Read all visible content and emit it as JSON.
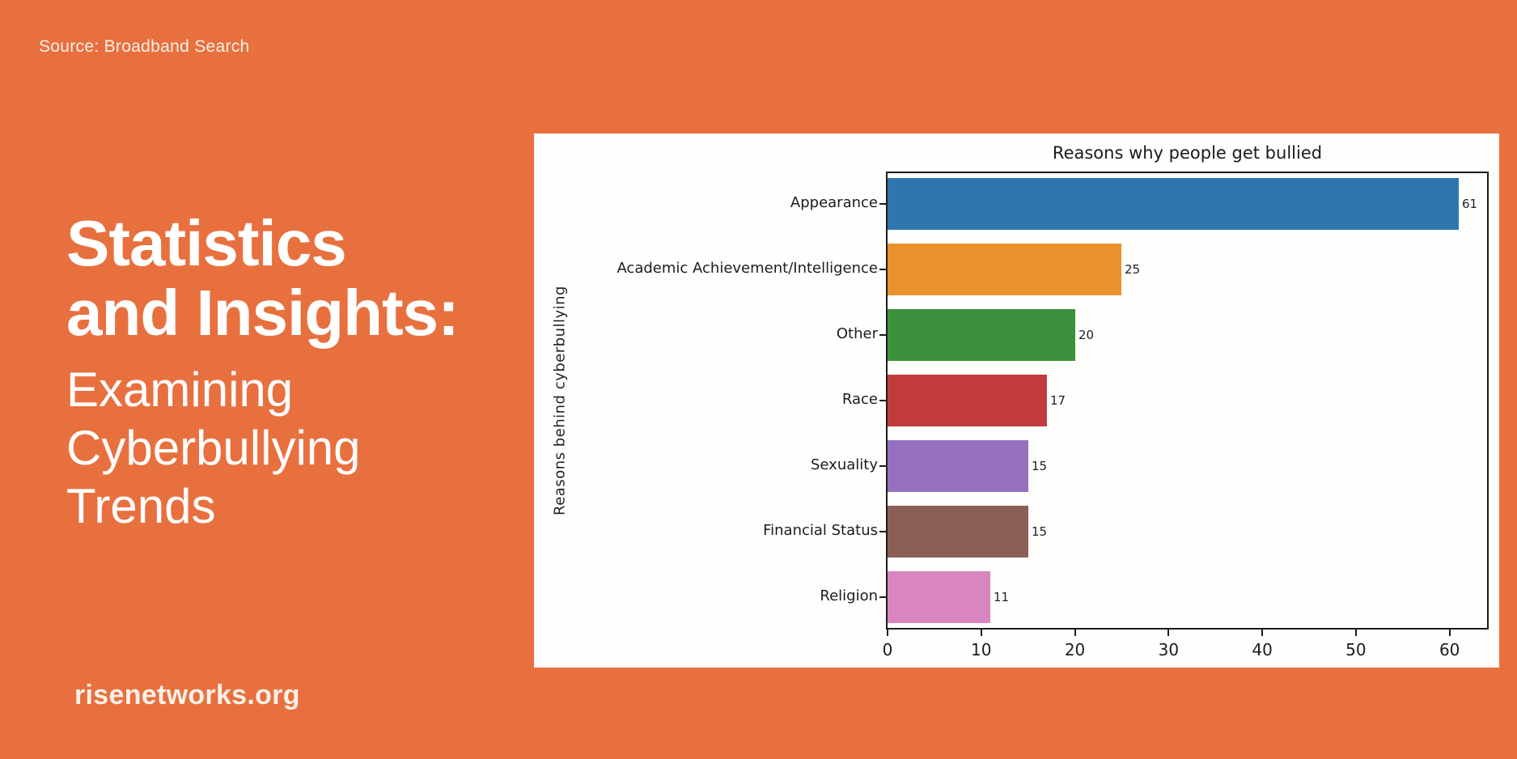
{
  "page": {
    "source_label": "Source: Broadband Search",
    "website": "risenetworks.org",
    "headline": {
      "line1": "Statistics",
      "line2": "and Insights:"
    },
    "subtitle": {
      "line1": "Examining",
      "line2": "Cyberbullying",
      "line3": "Trends"
    },
    "colors": {
      "background": "#E8703F",
      "headline_text": "#FFFFFF",
      "secondary_text": "#F6EFE7",
      "card_background": "#FEFEFD"
    }
  },
  "chart_data": {
    "type": "bar",
    "orientation": "horizontal",
    "title": "Reasons why people get bullied",
    "xlabel": "",
    "ylabel": "Reasons behind cyberbullying",
    "categories": [
      "Appearance",
      "Academic Achievement/Intelligence",
      "Other",
      "Race",
      "Sexuality",
      "Financial Status",
      "Religion"
    ],
    "values": [
      61,
      25,
      20,
      17,
      15,
      15,
      11
    ],
    "bar_colors": [
      "#2F76AD",
      "#E8912D",
      "#3C913C",
      "#C13B3D",
      "#9470BE",
      "#8B5F55",
      "#D985BF"
    ],
    "x_ticks": [
      0,
      10,
      20,
      30,
      40,
      50,
      60
    ],
    "xlim": [
      0,
      64
    ],
    "grid": false,
    "legend": false,
    "value_labels": true,
    "axis_color": "#1c1c1c"
  }
}
